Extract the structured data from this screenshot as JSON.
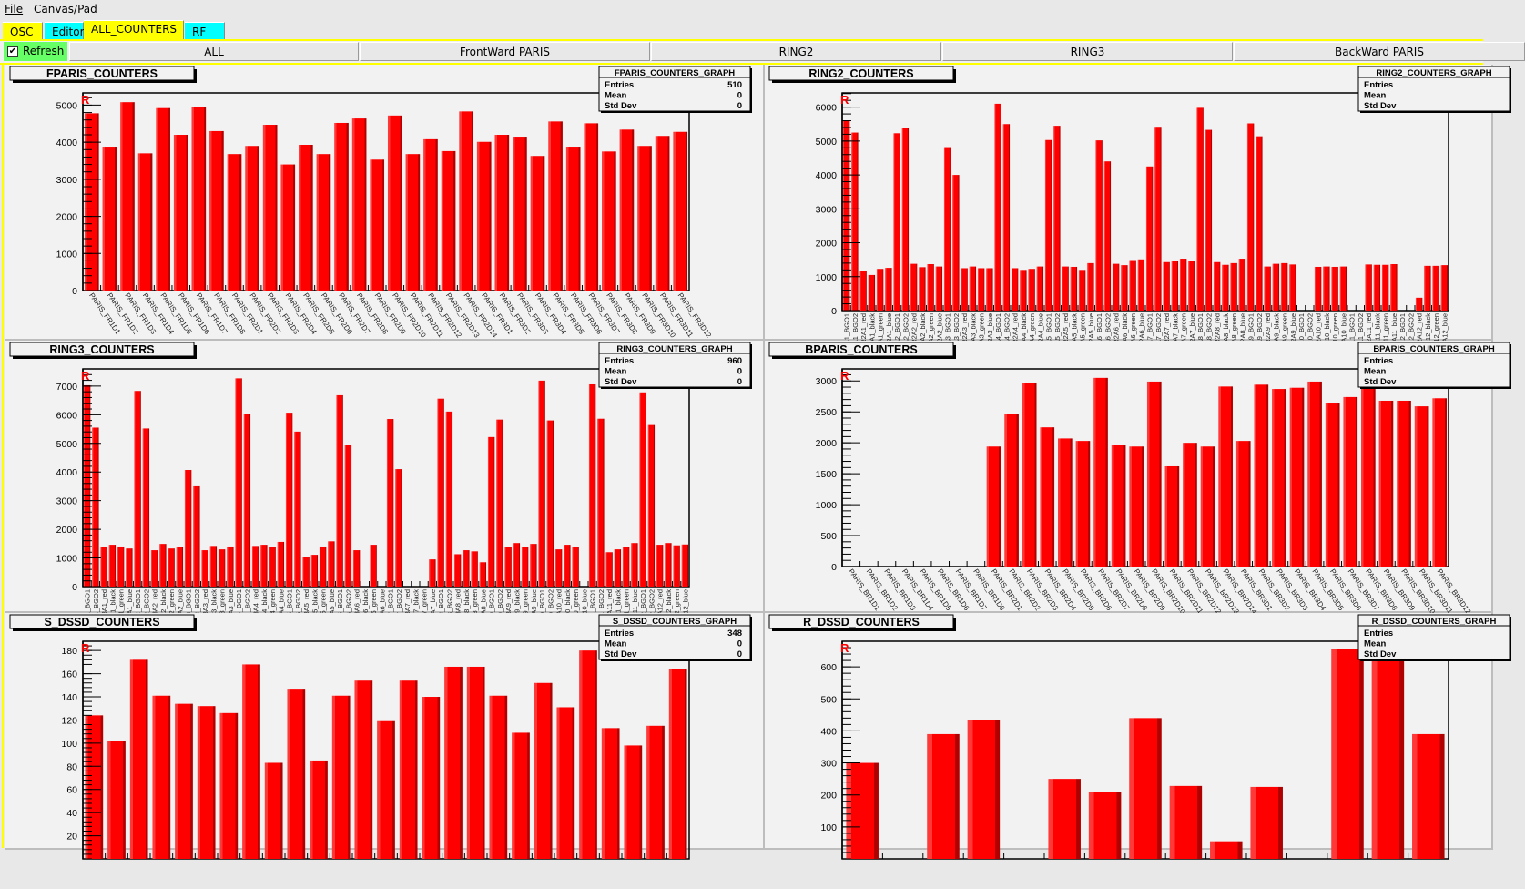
{
  "menu": {
    "file": "File",
    "canvas_pad": "Canvas/Pad"
  },
  "tabs": [
    {
      "label": "OSC",
      "color": "#ffff00"
    },
    {
      "label": "Editor",
      "color": "#00ffff"
    },
    {
      "label": "ALL_COUNTERS",
      "color": "#ffff00",
      "active": true
    },
    {
      "label": "RF",
      "color": "#00ffff"
    }
  ],
  "toolbar": {
    "refresh_label": "Refresh",
    "refresh_checked": true,
    "buttons": [
      "ALL",
      "FrontWard PARIS",
      "RING2",
      "RING3",
      "BackWard PARIS"
    ]
  },
  "colors": {
    "bar": "#ff0000",
    "bar_light": "#ff3838",
    "bar_dark": "#b00000",
    "marker": "#ff0000"
  },
  "chart_data": [
    {
      "id": "fparis",
      "type": "bar",
      "title": "FPARIS_COUNTERS",
      "marker": "R",
      "stats": {
        "title": "FPARIS_COUNTERS_GRAPH",
        "rows": [
          [
            "Entries",
            "510"
          ],
          [
            "Mean",
            "0"
          ],
          [
            "Std Dev",
            "0"
          ]
        ]
      },
      "ylim": [
        0,
        5330
      ],
      "yticks": [
        "0",
        "1000",
        "2000",
        "3000",
        "4000",
        "5000"
      ],
      "label_style": "slant",
      "categories": [
        "PARIS_FR1D1",
        "PARIS_FR1D2",
        "PARIS_FR1D3",
        "PARIS_FR1D4",
        "PARIS_FR1D5",
        "PARIS_FR1D6",
        "PARIS_FR1D7",
        "PARIS_FR1D8",
        "PARIS_FR2D1",
        "PARIS_FR2D2",
        "PARIS_FR2D3",
        "PARIS_FR2D4",
        "PARIS_FR2D5",
        "PARIS_FR2D6",
        "PARIS_FR2D7",
        "PARIS_FR2D8",
        "PARIS_FR2D9",
        "PARIS_FR2D10",
        "PARIS_FR2D11",
        "PARIS_FR2D12",
        "PARIS_FR2D13",
        "PARIS_FR2D14",
        "PARIS_FR3D1",
        "PARIS_FR3D2",
        "PARIS_FR3D3",
        "PARIS_FR3D4",
        "PARIS_FR3D5",
        "PARIS_FR3D6",
        "PARIS_FR3D7",
        "PARIS_FR3D8",
        "PARIS_FR3D9",
        "PARIS_FR3D10",
        "PARIS_FR3D11",
        "PARIS_FR3D12"
      ],
      "values": [
        4780,
        3880,
        5080,
        3700,
        4920,
        4200,
        4940,
        4300,
        3680,
        3900,
        4470,
        3400,
        3930,
        3680,
        4520,
        4640,
        3530,
        4720,
        3680,
        4080,
        3760,
        4830,
        4010,
        4200,
        4150,
        3630,
        4560,
        3880,
        4510,
        3750,
        4340,
        3900,
        4170,
        4280
      ]
    },
    {
      "id": "ring2",
      "type": "bar",
      "title": "RING2_COUNTERS",
      "marker": "R",
      "stats": {
        "title": "RING2_COUNTERS_GRAPH",
        "rows": [
          [
            "Entries",
            ""
          ],
          [
            "Mean",
            ""
          ],
          [
            "Std Dev",
            ""
          ]
        ]
      },
      "ylim": [
        0,
        6420
      ],
      "yticks": [
        "0",
        "1000",
        "2000",
        "3000",
        "4000",
        "5000",
        "6000"
      ],
      "label_style": "vertical",
      "categories": [
        "R2A1_BGO1",
        "R2A1_BGO2",
        "R2A1_red",
        "R2A1_black",
        "R2A1_green",
        "R2A1_blue",
        "R2A2_BGO1",
        "R2A2_BGO2",
        "R2A2_red",
        "R2A2_black",
        "R2A2_green",
        "R2A2_blue",
        "R2A3_BGO1",
        "R2A3_BGO2",
        "R2A3_red",
        "R2A3_black",
        "R2A3_green",
        "R2A3_blue",
        "R2A4_BGO1",
        "R2A4_BGO2",
        "R2A4_red",
        "R2A4_black",
        "R2A4_green",
        "R2A4_blue",
        "R2A5_BGO1",
        "R2A5_BGO2",
        "R2A5_red",
        "R2A5_black",
        "R2A5_green",
        "R2A5_blue",
        "R2A6_BGO1",
        "R2A6_BGO2",
        "R2A6_red",
        "R2A6_black",
        "R2A6_green",
        "R2A6_blue",
        "R2A7_BGO1",
        "R2A7_BGO2",
        "R2A7_red",
        "R2A7_black",
        "R2A7_green",
        "R2A7_blue",
        "R2A8_BGO1",
        "R2A8_BGO2",
        "R2A8_red",
        "R2A8_black",
        "R2A8_green",
        "R2A8_blue",
        "R2A9_BGO1",
        "R2A9_BGO2",
        "R2A9_red",
        "R2A9_black",
        "R2A9_green",
        "R2A9_blue",
        "R2A10_BGO1",
        "R2A10_BGO2",
        "R2A10_red",
        "R2A10_black",
        "R2A10_green",
        "R2A10_blue",
        "R2A11_BGO1",
        "R2A11_BGO2",
        "R2A11_red",
        "R2A11_black",
        "R2A11_green",
        "R2A11_blue",
        "R2A12_BGO1",
        "R2A12_BGO2",
        "R2A12_red",
        "R2A12_black",
        "R2A12_green",
        "R2A12_blue"
      ],
      "values": [
        5600,
        5250,
        1170,
        1050,
        1230,
        1260,
        5230,
        5380,
        1380,
        1280,
        1370,
        1300,
        4820,
        4000,
        1250,
        1300,
        1250,
        1250,
        6100,
        5500,
        1250,
        1200,
        1230,
        1300,
        5030,
        5450,
        1300,
        1290,
        1200,
        1400,
        5020,
        4400,
        1380,
        1340,
        1490,
        1510,
        4250,
        5420,
        1430,
        1460,
        1530,
        1460,
        5980,
        5330,
        1430,
        1350,
        1400,
        1530,
        5520,
        5140,
        1300,
        1380,
        1400,
        1360,
        0,
        0,
        1290,
        1300,
        1290,
        1300,
        0,
        0,
        1360,
        1350,
        1350,
        1370,
        0,
        0,
        380,
        1320,
        1320,
        1340
      ]
    },
    {
      "id": "ring3",
      "type": "bar",
      "title": "RING3_COUNTERS",
      "marker": "R",
      "stats": {
        "title": "RING3_COUNTERS_GRAPH",
        "rows": [
          [
            "Entries",
            "960"
          ],
          [
            "Mean",
            "0"
          ],
          [
            "Std Dev",
            "0"
          ]
        ]
      },
      "ylim": [
        0,
        7600
      ],
      "yticks": [
        "0",
        "1000",
        "2000",
        "3000",
        "4000",
        "5000",
        "6000",
        "7000"
      ],
      "label_style": "vertical",
      "categories": [
        "R3A1_BGO1",
        "R3A1_BGO2",
        "R3A1_red",
        "R3A1_black",
        "R3A1_green",
        "R3A1_blue",
        "R3A2_BGO1",
        "R3A2_BGO2",
        "R3A2_red",
        "R3A2_black",
        "R3A2_green",
        "R3A2_blue",
        "R3A3_BGO1",
        "R3A3_BGO2",
        "R3A3_red",
        "R3A3_black",
        "R3A3_green",
        "R3A3_blue",
        "R3A4_BGO1",
        "R3A4_BGO2",
        "R3A4_red",
        "R3A4_black",
        "R3A4_green",
        "R3A4_blue",
        "R3A5_BGO1",
        "R3A5_BGO2",
        "R3A5_red",
        "R3A5_black",
        "R3A5_green",
        "R3A5_blue",
        "R3A6_BGO1",
        "R3A6_BGO2",
        "R3A6_red",
        "R3A6_black",
        "R3A6_green",
        "R3A6_blue",
        "R3A7_BGO1",
        "R3A7_BGO2",
        "R3A7_red",
        "R3A7_black",
        "R3A7_green",
        "R3A7_blue",
        "R3A8_BGO1",
        "R3A8_BGO2",
        "R3A8_red",
        "R3A8_black",
        "R3A8_green",
        "R3A8_blue",
        "R3A9_BGO1",
        "R3A9_BGO2",
        "R3A9_red",
        "R3A9_black",
        "R3A9_green",
        "R3A9_blue",
        "R3A10_BGO1",
        "R3A10_BGO2",
        "R3A10_red",
        "R3A10_black",
        "R3A10_green",
        "R3A10_blue",
        "R3A11_BGO1",
        "R3A11_BGO2",
        "R3A11_red",
        "R3A11_black",
        "R3A11_green",
        "R3A11_blue",
        "R3A12_BGO1",
        "R3A12_BGO2",
        "R3A12_red",
        "R3A12_black",
        "R3A12_green",
        "R3A12_blue"
      ],
      "values": [
        7030,
        5550,
        1370,
        1460,
        1400,
        1330,
        6830,
        5520,
        1270,
        1490,
        1330,
        1370,
        4070,
        3500,
        1270,
        1420,
        1300,
        1400,
        7270,
        6010,
        1420,
        1460,
        1370,
        1560,
        6070,
        5410,
        1020,
        1110,
        1400,
        1580,
        6680,
        4930,
        1270,
        0,
        1460,
        0,
        5850,
        4100,
        0,
        0,
        0,
        950,
        6560,
        6110,
        1130,
        1270,
        1230,
        850,
        5220,
        5830,
        1370,
        1520,
        1370,
        1490,
        7190,
        5800,
        1300,
        1460,
        1370,
        0,
        7060,
        5860,
        1200,
        1300,
        1390,
        1520,
        6780,
        5640,
        1460,
        1520,
        1440,
        1470
      ]
    },
    {
      "id": "bparis",
      "type": "bar",
      "title": "BPARIS_COUNTERS",
      "marker": "R",
      "stats": {
        "title": "BPARIS_COUNTERS_GRAPH",
        "rows": [
          [
            "Entries",
            ""
          ],
          [
            "Mean",
            ""
          ],
          [
            "Std Dev",
            ""
          ]
        ]
      },
      "ylim": [
        0,
        3195
      ],
      "yticks": [
        "0",
        "500",
        "1000",
        "1500",
        "2000",
        "2500",
        "3000"
      ],
      "label_style": "slant",
      "categories": [
        "PARIS_BR1D1",
        "PARIS_BR1D2",
        "PARIS_BR1D3",
        "PARIS_BR1D4",
        "PARIS_BR1D5",
        "PARIS_BR1D6",
        "PARIS_BR1D7",
        "PARIS_BR1D8",
        "PARIS_BR2D1",
        "PARIS_BR2D2",
        "PARIS_BR2D3",
        "PARIS_BR2D4",
        "PARIS_BR2D5",
        "PARIS_BR2D6",
        "PARIS_BR2D7",
        "PARIS_BR2D8",
        "PARIS_BR2D9",
        "PARIS_BR2D10",
        "PARIS_BR2D11",
        "PARIS_BR2D12",
        "PARIS_BR2D13",
        "PARIS_BR2D14",
        "PARIS_BR3D1",
        "PARIS_BR3D2",
        "PARIS_BR3D3",
        "PARIS_BR3D4",
        "PARIS_BR3D5",
        "PARIS_BR3D6",
        "PARIS_BR3D7",
        "PARIS_BR3D8",
        "PARIS_BR3D9",
        "PARIS_BR3D10",
        "PARIS_BR3D11",
        "PARIS_BR3D12"
      ],
      "values": [
        0,
        0,
        0,
        0,
        0,
        0,
        0,
        0,
        1940,
        2460,
        2960,
        2250,
        2070,
        2030,
        3050,
        1960,
        1940,
        2990,
        1620,
        2000,
        1940,
        2910,
        2030,
        2940,
        2870,
        2890,
        2990,
        2650,
        2740,
        2900,
        2680,
        2680,
        2590,
        2720
      ]
    },
    {
      "id": "sdssd",
      "type": "bar",
      "title": "S_DSSD_COUNTERS",
      "marker": "R",
      "stats": {
        "title": "S_DSSD_COUNTERS_GRAPH",
        "rows": [
          [
            "Entries",
            "348"
          ],
          [
            "Mean",
            "0"
          ],
          [
            "Std Dev",
            "0"
          ]
        ]
      },
      "ylim": [
        0,
        188
      ],
      "yticks": [
        "20",
        "40",
        "60",
        "80",
        "100",
        "120",
        "140",
        "160",
        "180"
      ],
      "label_style": "none",
      "values": [
        124,
        102,
        172,
        141,
        134,
        132,
        126,
        168,
        83,
        147,
        85,
        141,
        154,
        119,
        154,
        140,
        166,
        166,
        141,
        109,
        152,
        131,
        180,
        113,
        98,
        115,
        164
      ]
    },
    {
      "id": "rdssd",
      "type": "bar",
      "title": "R_DSSD_COUNTERS",
      "marker": "R",
      "stats": {
        "title": "R_DSSD_COUNTERS_GRAPH",
        "rows": [
          [
            "Entries",
            ""
          ],
          [
            "Mean",
            ""
          ],
          [
            "Std Dev",
            ""
          ]
        ]
      },
      "ylim": [
        0,
        680
      ],
      "yticks": [
        "100",
        "200",
        "300",
        "400",
        "500",
        "600"
      ],
      "label_style": "none",
      "values": [
        300,
        0,
        390,
        435,
        0,
        250,
        210,
        440,
        228,
        55,
        225,
        0,
        655,
        700,
        390
      ]
    }
  ]
}
